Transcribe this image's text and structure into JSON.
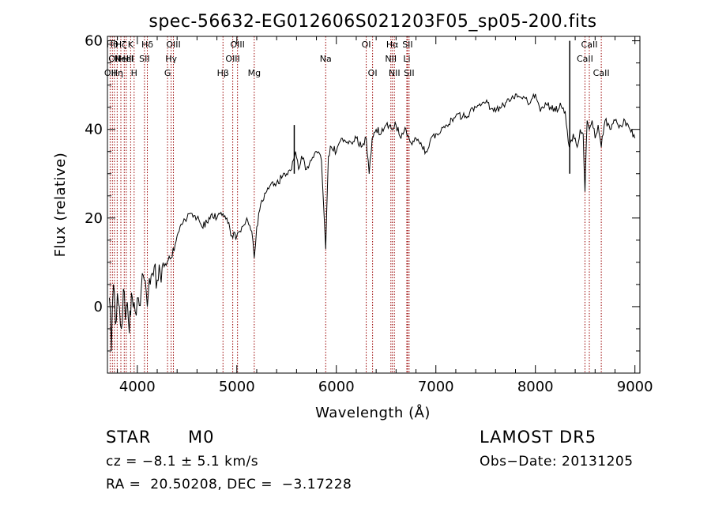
{
  "chart_data": {
    "type": "line",
    "title": "spec-56632-EG012606S021203F05_sp05-200.fits",
    "xlabel": "Wavelength (Å)",
    "ylabel": "Flux (relative)",
    "xlim": [
      3700,
      9050
    ],
    "ylim": [
      -15,
      61
    ],
    "xticks": [
      4000,
      5000,
      6000,
      7000,
      8000,
      9000
    ],
    "yticks": [
      0,
      20,
      40,
      60
    ],
    "grid": false,
    "line_color": "#000000",
    "marker_color": "#990000",
    "series": [
      {
        "x": [
          3720,
          3740,
          3760,
          3780,
          3800,
          3820,
          3840,
          3860,
          3880,
          3900,
          3920,
          3933,
          3950,
          3968,
          3990,
          4010,
          4040,
          4070,
          4101,
          4130,
          4160,
          4200,
          4250,
          4300,
          4340,
          4380,
          4420,
          4460,
          4500,
          4550,
          4600,
          4650,
          4700,
          4750,
          4800,
          4861,
          4900,
          4950,
          5000,
          5050,
          5100,
          5150,
          5175,
          5200,
          5250,
          5300,
          5350,
          5400,
          5450,
          5500,
          5550,
          5590,
          5620,
          5650,
          5700,
          5750,
          5800,
          5850,
          5893,
          5920,
          5950,
          6000,
          6050,
          6100,
          6150,
          6200,
          6250,
          6300,
          6330,
          6360,
          6400,
          6450,
          6500,
          6563,
          6600,
          6650,
          6700,
          6750,
          6800,
          6850,
          6900,
          6950,
          7000,
          7100,
          7200,
          7300,
          7400,
          7500,
          7600,
          7700,
          7800,
          7900,
          7950,
          8000,
          8050,
          8100,
          8150,
          8200,
          8250,
          8300,
          8340,
          8380,
          8420,
          8450,
          8480,
          8498,
          8520,
          8542,
          8570,
          8600,
          8630,
          8662,
          8700,
          8750,
          8800,
          8850,
          8900,
          8950,
          9000
        ],
        "y": [
          2,
          -10,
          5,
          -4,
          3,
          0,
          -5,
          4,
          -3,
          1,
          -6,
          -2,
          2,
          1,
          -2,
          2,
          4,
          6,
          0,
          5,
          7,
          6,
          9,
          10,
          11,
          14,
          17,
          19,
          20,
          21,
          20,
          18,
          19,
          21,
          20,
          21,
          20,
          16,
          16,
          18,
          20,
          17,
          11,
          18,
          24,
          26,
          28,
          28,
          29,
          30,
          31,
          35,
          31,
          34,
          31,
          33,
          35,
          33,
          13,
          34,
          36,
          35,
          38,
          37,
          37,
          38,
          36,
          38,
          30,
          38,
          40,
          39,
          41,
          40,
          41,
          38,
          40,
          37,
          38,
          37,
          35,
          38,
          39,
          41,
          43,
          43,
          45,
          46,
          44,
          46,
          48,
          47,
          46,
          48,
          44,
          46,
          45,
          44,
          46,
          44,
          36,
          39,
          36,
          40,
          39,
          26,
          42,
          40,
          42,
          38,
          41,
          36,
          42,
          40,
          42,
          41,
          42,
          40,
          38
        ]
      }
    ],
    "spikes": [
      {
        "x": 5577,
        "y": 41
      },
      {
        "x": 8345,
        "y": 60
      }
    ],
    "line_markers": [
      {
        "x": 3727,
        "rows": [
          {
            "text": "OII",
            "row": 2
          }
        ]
      },
      {
        "x": 3750,
        "rows": [
          {
            "text": "Hθ",
            "row": 0
          }
        ]
      },
      {
        "x": 3770,
        "rows": [
          {
            "text": "OII",
            "row": 1
          }
        ]
      },
      {
        "x": 3798,
        "rows": [
          {
            "text": "Hη",
            "row": 2
          }
        ]
      },
      {
        "x": 3835,
        "rows": [
          {
            "text": "Hζ",
            "row": 0
          }
        ]
      },
      {
        "x": 3869,
        "rows": [
          {
            "text": "NeIII",
            "row": 1
          }
        ]
      },
      {
        "x": 3889,
        "rows": [
          {
            "text": "HeI",
            "row": 1
          }
        ]
      },
      {
        "x": 3933,
        "rows": [
          {
            "text": "K",
            "row": 0
          }
        ]
      },
      {
        "x": 3968,
        "rows": [
          {
            "text": "H",
            "row": 2
          }
        ]
      },
      {
        "x": 4072,
        "rows": [
          {
            "text": "SII",
            "row": 1
          }
        ]
      },
      {
        "x": 4101,
        "rows": [
          {
            "text": "Hδ",
            "row": 0
          }
        ]
      },
      {
        "x": 4304,
        "rows": [
          {
            "text": "G",
            "row": 2
          }
        ]
      },
      {
        "x": 4340,
        "rows": [
          {
            "text": "Hγ",
            "row": 1
          }
        ]
      },
      {
        "x": 4363,
        "rows": [
          {
            "text": "OIII",
            "row": 0
          }
        ]
      },
      {
        "x": 4861,
        "rows": [
          {
            "text": "Hβ",
            "row": 2
          }
        ]
      },
      {
        "x": 4959,
        "rows": [
          {
            "text": "OIII",
            "row": 1
          }
        ]
      },
      {
        "x": 5007,
        "rows": [
          {
            "text": "OIII",
            "row": 0
          }
        ]
      },
      {
        "x": 5175,
        "rows": [
          {
            "text": "Mg",
            "row": 2
          }
        ]
      },
      {
        "x": 5893,
        "rows": [
          {
            "text": "Na",
            "row": 1
          }
        ]
      },
      {
        "x": 6300,
        "rows": [
          {
            "text": "OI",
            "row": 0
          }
        ]
      },
      {
        "x": 6364,
        "rows": [
          {
            "text": "OI",
            "row": 2
          }
        ]
      },
      {
        "x": 6548,
        "rows": [
          {
            "text": "NII",
            "row": 1
          }
        ]
      },
      {
        "x": 6563,
        "rows": [
          {
            "text": "Hα",
            "row": 0
          }
        ]
      },
      {
        "x": 6583,
        "rows": [
          {
            "text": "NII",
            "row": 2
          }
        ]
      },
      {
        "x": 6708,
        "rows": [
          {
            "text": "Li",
            "row": 1
          }
        ]
      },
      {
        "x": 6716,
        "rows": [
          {
            "text": "SII",
            "row": 0
          }
        ]
      },
      {
        "x": 6731,
        "rows": [
          {
            "text": "SII",
            "row": 2
          }
        ]
      },
      {
        "x": 8498,
        "rows": [
          {
            "text": "CaII",
            "row": 1
          }
        ]
      },
      {
        "x": 8542,
        "rows": [
          {
            "text": "CaII",
            "row": 0
          }
        ]
      },
      {
        "x": 8662,
        "rows": [
          {
            "text": "CaII",
            "row": 2
          }
        ]
      }
    ]
  },
  "info": {
    "object_class": "STAR",
    "subclass": "M0",
    "redshift": "cz = −8.1 ± 5.1 km/s",
    "coords": "RA =  20.50208, DEC =  −3.17228",
    "survey": "LAMOST DR5",
    "obs_date": "Obs−Date: 20131205"
  }
}
